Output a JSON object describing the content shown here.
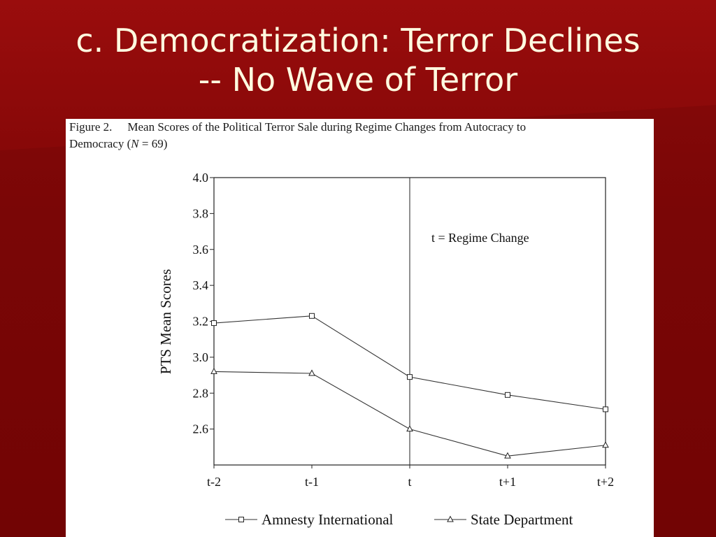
{
  "slide": {
    "title_line1": "c. Democratization: Terror Declines",
    "title_line2": "-- No Wave of Terror"
  },
  "figure": {
    "label": "Figure 2.",
    "caption_line1": "Mean Scores of the Political Terror Sale during Regime Changes from Autocracy to",
    "caption_line2_pre": "Democracy (",
    "caption_line2_n": "N",
    "caption_line2_post": " = 69)"
  },
  "chart_data": {
    "type": "line",
    "categories": [
      "t-2",
      "t-1",
      "t",
      "t+1",
      "t+2"
    ],
    "ylabel": "PTS Mean Scores",
    "xlabel": "",
    "ylim": [
      2.4,
      4.0
    ],
    "yticks": [
      "4.0",
      "3.8",
      "3.6",
      "3.4",
      "3.2",
      "3.0",
      "2.8",
      "2.6"
    ],
    "annotation": "t = Regime Change",
    "reference_line_at": "t",
    "legend_position": "bottom",
    "series": [
      {
        "name": "Amnesty International",
        "marker": "square",
        "values": [
          3.19,
          3.23,
          2.89,
          2.79,
          2.71
        ]
      },
      {
        "name": "State Department",
        "marker": "triangle",
        "values": [
          2.92,
          2.91,
          2.6,
          2.45,
          2.51
        ]
      }
    ]
  }
}
